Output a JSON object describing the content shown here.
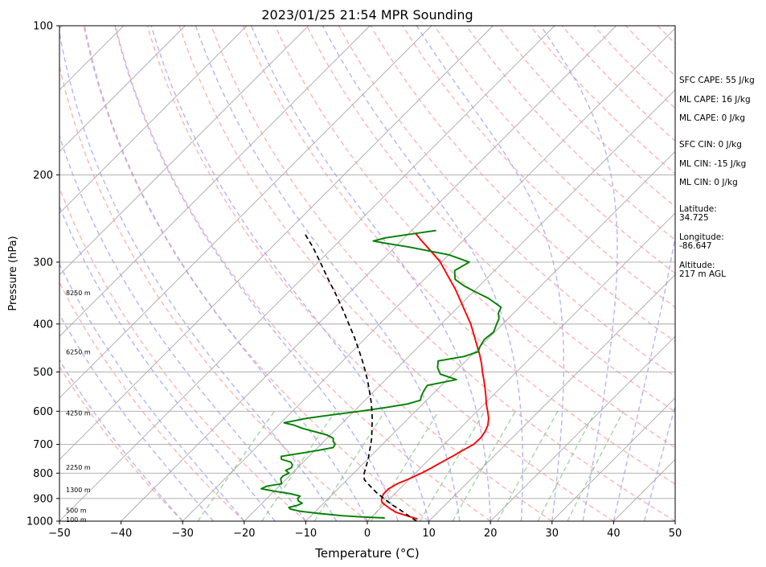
{
  "chart_data": {
    "type": "line",
    "title": "2023/01/25 21:54 MPR Sounding",
    "xlabel": "Temperature (°C)",
    "ylabel": "Pressure (hPa)",
    "xlim": [
      -50,
      50
    ],
    "ylim": [
      1000,
      100
    ],
    "y_scale": "log",
    "skew": "45 degrees",
    "grid": true,
    "xticks": [
      "−50",
      "−40",
      "−30",
      "−20",
      "−10",
      "0",
      "10",
      "20",
      "30",
      "40",
      "50"
    ],
    "yticks": [
      "100",
      "200",
      "300",
      "400",
      "500",
      "600",
      "700",
      "800",
      "900",
      "1000"
    ],
    "height_labels": [
      {
        "text": "100 m",
        "p": 993
      },
      {
        "text": "500 m",
        "p": 950
      },
      {
        "text": "1300 m",
        "p": 865
      },
      {
        "text": "2250 m",
        "p": 778
      },
      {
        "text": "4250 m",
        "p": 605
      },
      {
        "text": "6250 m",
        "p": 455
      },
      {
        "text": "8250 m",
        "p": 346
      }
    ],
    "series": [
      {
        "role": "temperature",
        "color": "#ff0000",
        "points": [
          [
            990,
            7.8
          ],
          [
            975,
            5.5
          ],
          [
            960,
            3.3
          ],
          [
            945,
            1.8
          ],
          [
            930,
            0.5
          ],
          [
            920,
            -0.4
          ],
          [
            910,
            -1.0
          ],
          [
            895,
            -1.5
          ],
          [
            880,
            -1.8
          ],
          [
            860,
            -1.8
          ],
          [
            840,
            -1.2
          ],
          [
            820,
            0.0
          ],
          [
            800,
            1.0
          ],
          [
            780,
            1.8
          ],
          [
            760,
            2.5
          ],
          [
            740,
            3.3
          ],
          [
            720,
            4.0
          ],
          [
            700,
            4.8
          ],
          [
            680,
            4.9
          ],
          [
            660,
            4.6
          ],
          [
            640,
            4.0
          ],
          [
            620,
            3.0
          ],
          [
            600,
            1.7
          ],
          [
            580,
            0.3
          ],
          [
            560,
            -1.0
          ],
          [
            540,
            -2.4
          ],
          [
            520,
            -3.9
          ],
          [
            500,
            -5.5
          ],
          [
            480,
            -7.1
          ],
          [
            460,
            -8.9
          ],
          [
            440,
            -10.9
          ],
          [
            420,
            -13.0
          ],
          [
            400,
            -15.2
          ],
          [
            380,
            -17.8
          ],
          [
            360,
            -20.5
          ],
          [
            340,
            -23.4
          ],
          [
            320,
            -26.7
          ],
          [
            300,
            -30.2
          ],
          [
            290,
            -32.4
          ],
          [
            280,
            -34.7
          ],
          [
            270,
            -37.1
          ],
          [
            262,
            -39.0
          ]
        ]
      },
      {
        "role": "dewpoint",
        "color": "#008000",
        "points": [
          [
            985,
            2.3
          ],
          [
            980,
            -2.0
          ],
          [
            975,
            -5.0
          ],
          [
            965,
            -9.0
          ],
          [
            955,
            -12.5
          ],
          [
            945,
            -14.5
          ],
          [
            938,
            -15.0
          ],
          [
            930,
            -14.0
          ],
          [
            920,
            -13.5
          ],
          [
            910,
            -14.5
          ],
          [
            900,
            -15.0
          ],
          [
            890,
            -15.0
          ],
          [
            880,
            -17.0
          ],
          [
            870,
            -20.0
          ],
          [
            860,
            -22.5
          ],
          [
            850,
            -22.0
          ],
          [
            840,
            -20.0
          ],
          [
            830,
            -20.5
          ],
          [
            820,
            -21.0
          ],
          [
            810,
            -21.0
          ],
          [
            800,
            -20.5
          ],
          [
            790,
            -21.5
          ],
          [
            780,
            -21.0
          ],
          [
            770,
            -21.3
          ],
          [
            760,
            -22.0
          ],
          [
            750,
            -24.0
          ],
          [
            740,
            -24.5
          ],
          [
            730,
            -22.0
          ],
          [
            720,
            -19.5
          ],
          [
            710,
            -17.5
          ],
          [
            700,
            -17.7
          ],
          [
            690,
            -18.5
          ],
          [
            680,
            -19.0
          ],
          [
            670,
            -20.5
          ],
          [
            660,
            -23.0
          ],
          [
            650,
            -25.5
          ],
          [
            640,
            -27.5
          ],
          [
            633,
            -29.5
          ],
          [
            620,
            -26.5
          ],
          [
            610,
            -23.0
          ],
          [
            600,
            -19.0
          ],
          [
            590,
            -15.5
          ],
          [
            580,
            -12.5
          ],
          [
            570,
            -11.0
          ],
          [
            560,
            -11.5
          ],
          [
            545,
            -12.0
          ],
          [
            532,
            -12.3
          ],
          [
            518,
            -8.5
          ],
          [
            505,
            -12.0
          ],
          [
            490,
            -13.5
          ],
          [
            475,
            -14.5
          ],
          [
            465,
            -11.0
          ],
          [
            455,
            -9.5
          ],
          [
            445,
            -10.0
          ],
          [
            430,
            -10.5
          ],
          [
            415,
            -10.2
          ],
          [
            400,
            -11.0
          ],
          [
            390,
            -11.5
          ],
          [
            380,
            -12.5
          ],
          [
            370,
            -13.0
          ],
          [
            355,
            -16.5
          ],
          [
            345,
            -19.5
          ],
          [
            335,
            -22.5
          ],
          [
            325,
            -25.0
          ],
          [
            312,
            -26.5
          ],
          [
            300,
            -25.5
          ],
          [
            290,
            -30.0
          ],
          [
            280,
            -37.5
          ],
          [
            275,
            -42.0
          ],
          [
            272,
            -44.5
          ],
          [
            268,
            -43.0
          ],
          [
            264,
            -40.0
          ],
          [
            259,
            -36.0
          ]
        ]
      },
      {
        "role": "parcel",
        "color": "#000000",
        "style": "dashed",
        "points": [
          [
            1000,
            8.0
          ],
          [
            975,
            5.8
          ],
          [
            950,
            3.6
          ],
          [
            925,
            1.2
          ],
          [
            900,
            -1.0
          ],
          [
            875,
            -3.2
          ],
          [
            850,
            -5.2
          ],
          [
            825,
            -7.2
          ],
          [
            800,
            -8.3
          ],
          [
            775,
            -9.1
          ],
          [
            750,
            -9.9
          ],
          [
            725,
            -10.9
          ],
          [
            700,
            -11.9
          ],
          [
            675,
            -13.0
          ],
          [
            650,
            -14.3
          ],
          [
            625,
            -15.6
          ],
          [
            600,
            -17.1
          ],
          [
            575,
            -18.7
          ],
          [
            550,
            -20.5
          ],
          [
            525,
            -22.4
          ],
          [
            500,
            -24.5
          ],
          [
            475,
            -26.8
          ],
          [
            450,
            -29.3
          ],
          [
            425,
            -32.0
          ],
          [
            400,
            -35.0
          ],
          [
            375,
            -38.2
          ],
          [
            350,
            -41.7
          ],
          [
            325,
            -45.6
          ],
          [
            300,
            -49.7
          ],
          [
            280,
            -53.3
          ],
          [
            262,
            -57.0
          ]
        ]
      }
    ],
    "background_lines": {
      "dry_adiabats": "red dashed",
      "moist_adiabats": "blue dashed",
      "mixing_ratio": "green dashed",
      "isotherms": "grey solid"
    }
  },
  "side_info": {
    "sfc_cape": "SFC CAPE: 55 J/kg",
    "ml_cape_1": "ML CAPE: 16 J/kg",
    "ml_cape_2": "ML CAPE: 0 J/kg",
    "sfc_cin": "SFC CIN: 0 J/kg",
    "ml_cin_1": "ML CIN: -15 J/kg",
    "ml_cin_2": "ML CIN: 0 J/kg",
    "latitude": "Latitude:\n34.725",
    "longitude": "Longitude:\n-86.647",
    "altitude": "Altitude:\n217 m AGL"
  }
}
